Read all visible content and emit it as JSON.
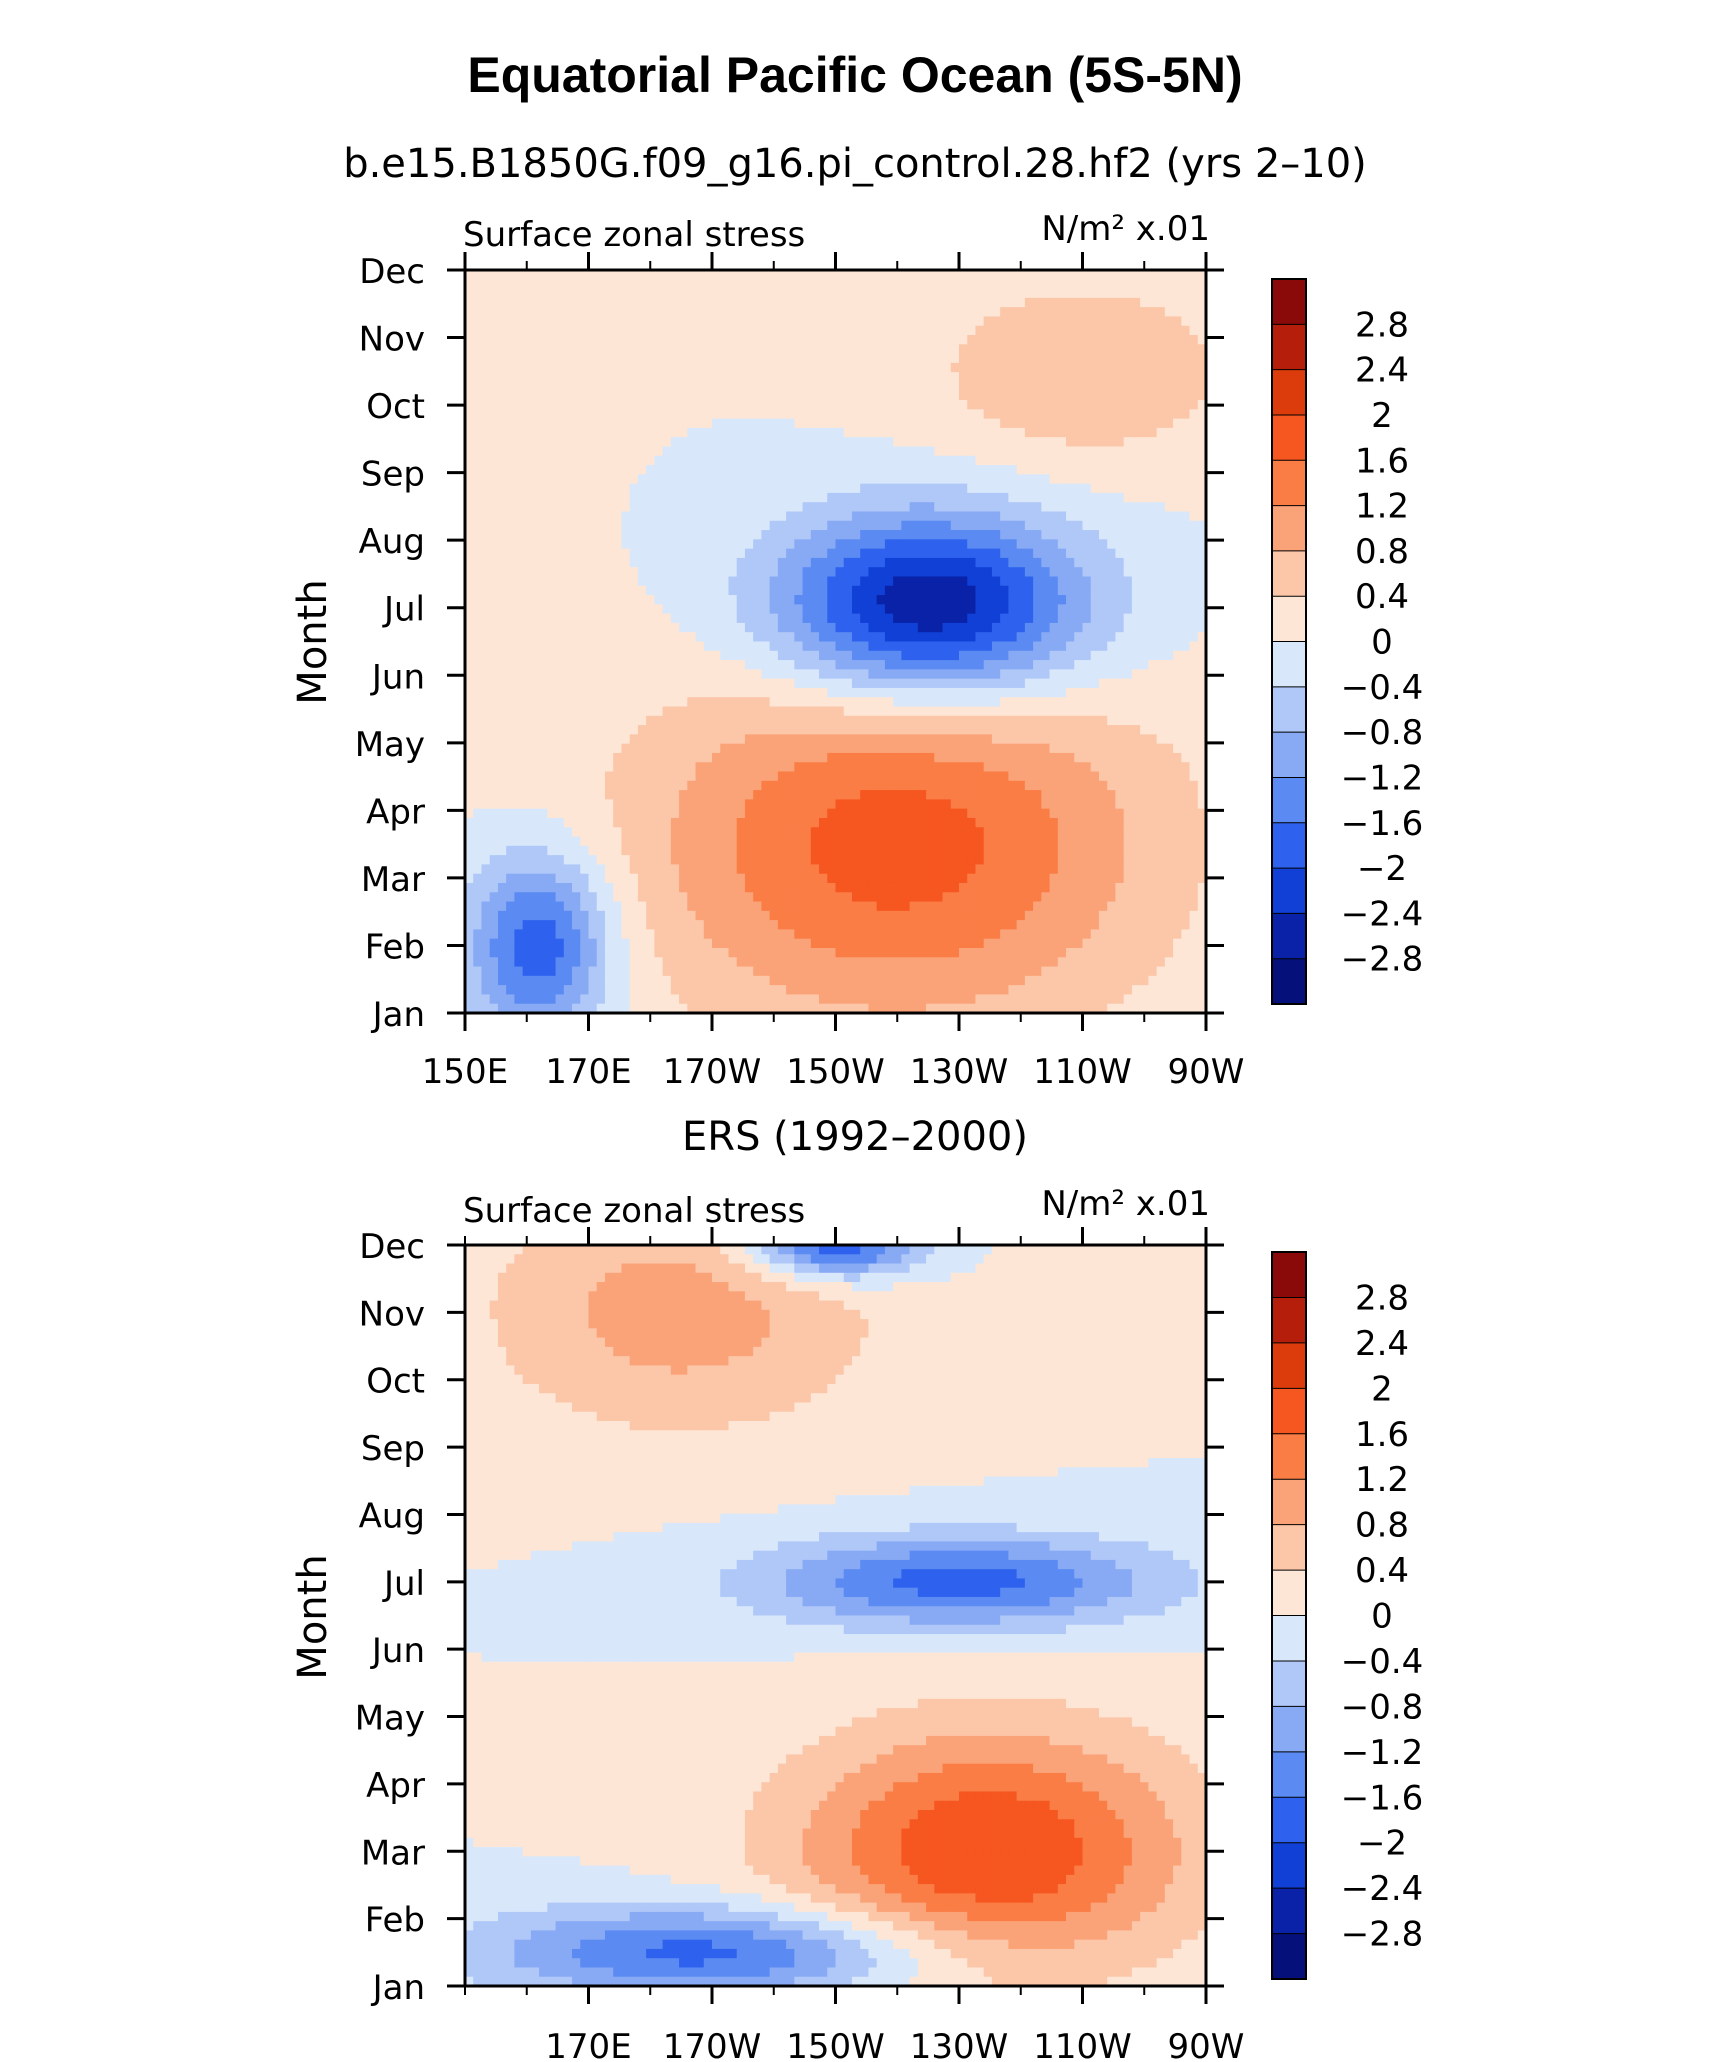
{
  "figure": {
    "title": "Equatorial Pacific Ocean (5S-5N)"
  },
  "color_scale": {
    "levels": [
      -2.8,
      -2.4,
      -2,
      -1.6,
      -1.2,
      -0.8,
      -0.4,
      0,
      0.4,
      0.8,
      1.2,
      1.6,
      2,
      2.4,
      2.8
    ],
    "level_labels": [
      "2.8",
      "2.4",
      "2",
      "1.6",
      "1.2",
      "0.8",
      "0.4",
      "0",
      "−0.4",
      "−0.8",
      "−1.2",
      "−1.6",
      "−2",
      "−2.4",
      "−2.8"
    ],
    "colors_top_to_bottom": [
      "#8a0a0a",
      "#b41e0a",
      "#dc3c0c",
      "#f6561f",
      "#fa7d46",
      "#fba378",
      "#fcc6a8",
      "#fde6d6",
      "#d8e8fa",
      "#b0c8f8",
      "#88aaf4",
      "#5a8af2",
      "#2e62ee",
      "#1040d6",
      "#0a22a8",
      "#06107a"
    ]
  },
  "chart_data": [
    {
      "type": "heatmap",
      "title": "b.e15.B1850G.f09_g16.pi_control.28.hf2 (yrs 2–10)",
      "left_string": "Surface zonal stress",
      "right_string": "N/m² x.01",
      "xlabel": "",
      "ylabel": "Month",
      "x_ticks": [
        "150E",
        "170E",
        "170W",
        "150W",
        "130W",
        "110W",
        "90W"
      ],
      "y_ticks": [
        "Jan",
        "Feb",
        "Mar",
        "Apr",
        "May",
        "Jun",
        "Jul",
        "Aug",
        "Sep",
        "Oct",
        "Nov",
        "Dec"
      ],
      "xlim_lon": [
        150,
        270
      ],
      "ylim_month": [
        1,
        12
      ],
      "units": "N/m^2 x.01",
      "features": [
        {
          "label": "positive anomaly band",
          "lon": [
            150,
            240
          ],
          "month": [
            1,
            7
          ],
          "peak_value": 1.8,
          "peak_lon": 220,
          "peak_month": 3.5
        },
        {
          "label": "negative anomaly core",
          "lon": [
            200,
            255
          ],
          "month": [
            6,
            9
          ],
          "peak_value": -3.0,
          "peak_lon": 225,
          "peak_month": 7
        },
        {
          "label": "negative west",
          "lon": [
            150,
            175
          ],
          "month": [
            1,
            4
          ],
          "peak_value": -2.0,
          "peak_lon": 162,
          "peak_month": 2
        },
        {
          "label": "positive east",
          "lon": [
            215,
            270
          ],
          "month": [
            9,
            12
          ],
          "peak_value": 0.8,
          "peak_lon": 250,
          "peak_month": 10.5
        }
      ]
    },
    {
      "type": "heatmap",
      "title": "ERS (1992–2000)",
      "left_string": "Surface zonal stress",
      "right_string": "N/m² x.01",
      "xlabel": "",
      "ylabel": "Month",
      "x_ticks": [
        "170E",
        "170W",
        "150W",
        "130W",
        "110W",
        "90W"
      ],
      "y_ticks": [
        "Jan",
        "Feb",
        "Mar",
        "Apr",
        "May",
        "Jun",
        "Jul",
        "Aug",
        "Sep",
        "Oct",
        "Nov",
        "Dec"
      ],
      "xlim_lon": [
        150,
        270
      ],
      "ylim_month": [
        1,
        12
      ],
      "units": "N/m^2 x.01",
      "features": [
        {
          "label": "positive anomaly band",
          "lon": [
            180,
            250
          ],
          "month": [
            2,
            6
          ],
          "peak_value": 2.0,
          "peak_lon": 235,
          "peak_month": 3
        },
        {
          "label": "negative Jul band",
          "lon": [
            200,
            270
          ],
          "month": [
            6.5,
            8
          ],
          "peak_value": -1.8,
          "peak_lon": 230,
          "peak_month": 7
        },
        {
          "label": "negative early-year",
          "lon": [
            150,
            230
          ],
          "month": [
            1,
            2.5
          ],
          "peak_value": -1.8,
          "peak_lon": 190,
          "peak_month": 1.5
        },
        {
          "label": "positive west late-year",
          "lon": [
            150,
            220
          ],
          "month": [
            8,
            12
          ],
          "peak_value": 1.0,
          "peak_lon": 185,
          "peak_month": 11
        },
        {
          "label": "negative Dec core",
          "lon": [
            195,
            225
          ],
          "month": [
            11.5,
            12
          ],
          "peak_value": -2.2,
          "peak_lon": 210,
          "peak_month": 12
        }
      ]
    }
  ]
}
